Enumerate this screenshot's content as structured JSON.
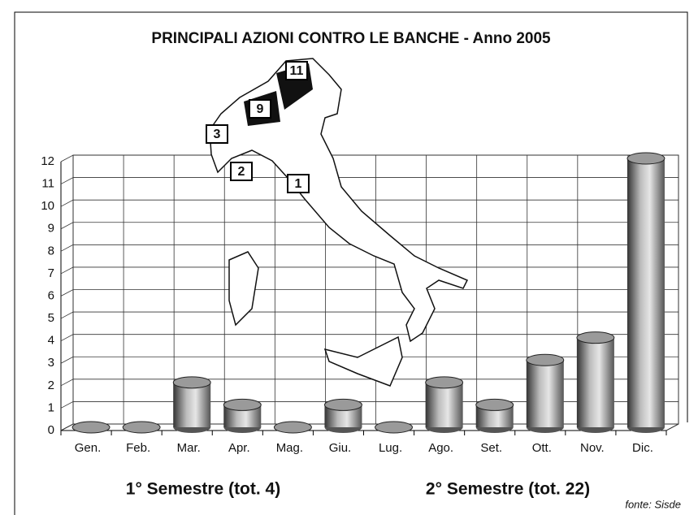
{
  "chart_data": {
    "type": "bar",
    "title": "PRINCIPALI AZIONI CONTRO LE BANCHE - Anno 2005",
    "categories": [
      "Gen.",
      "Feb.",
      "Mar.",
      "Apr.",
      "Mag.",
      "Giu.",
      "Lug.",
      "Ago.",
      "Set.",
      "Ott.",
      "Nov.",
      "Dic."
    ],
    "values": [
      0,
      0,
      2,
      1,
      0,
      1,
      0,
      2,
      1,
      3,
      4,
      12
    ],
    "color": "#9a9a9a",
    "ylim": [
      0,
      12
    ],
    "yticks": [
      0,
      1,
      2,
      3,
      4,
      5,
      6,
      7,
      8,
      9,
      10,
      11,
      12
    ],
    "grid": true,
    "annotations": [
      "1° Semestre (tot. 4)",
      "2° Semestre (tot. 22)",
      "fonte: Sisde"
    ],
    "map_labels": [
      11,
      9,
      3,
      2,
      1
    ]
  }
}
